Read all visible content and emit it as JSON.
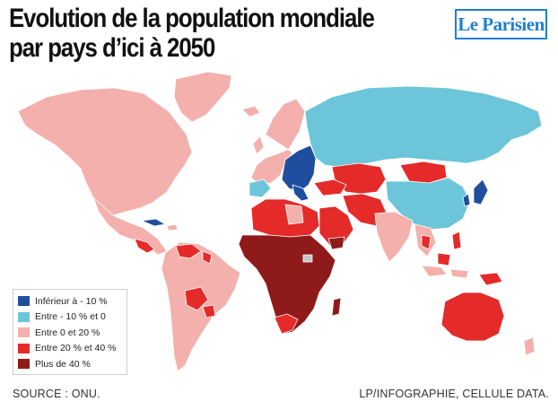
{
  "header": {
    "title_line1": "Evolution de la population mondiale",
    "title_line2": "par pays d’ici à 2050",
    "logo_text": "Le Parisien"
  },
  "colors": {
    "ocean": "#ffffff",
    "border": "#ffffff",
    "cat_lt_minus10": "#1f4e9e",
    "cat_minus10_0": "#6cc5d8",
    "cat_0_20": "#f3b0ac",
    "cat_20_40": "#e52a2a",
    "cat_gt_40": "#8f1a1a",
    "no_data": "#c7c7c7",
    "logo": "#1f7fd0"
  },
  "legend": {
    "items": [
      {
        "label": "Inférieur à - 10 %",
        "color": "#1f4e9e"
      },
      {
        "label": "Entre - 10 % et 0",
        "color": "#6cc5d8"
      },
      {
        "label": "Entre 0 et 20 %",
        "color": "#f3b0ac"
      },
      {
        "label": "Entre 20 % et 40 %",
        "color": "#e52a2a"
      },
      {
        "label": "Plus de 40 %",
        "color": "#8f1a1a"
      }
    ]
  },
  "footer": {
    "source": "SOURCE : ONU.",
    "credit": "LP/INFOGRAPHIE, CELLULE DATA."
  }
}
